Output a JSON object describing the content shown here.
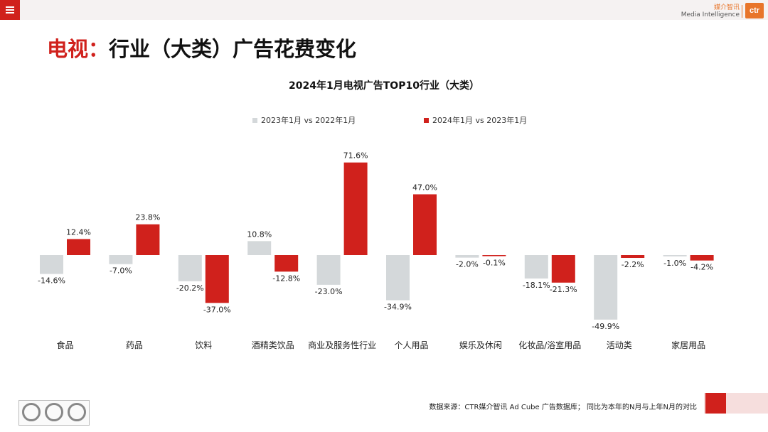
{
  "header": {
    "brand_cn": "媒介智讯",
    "brand_en": "Media Intelligence",
    "logo_text": "ctr",
    "menu_icon": "hamburger-icon"
  },
  "page": {
    "title_lead": "电视：",
    "title_rest": "行业（大类）广告花费变化"
  },
  "footer": {
    "source": "数据来源：CTR媒介智讯 Ad Cube 广告数据库； 同比为本年的N月与上年N月的对比",
    "cert_icons": [
      "sgs-cert-icon",
      "sgs-cert-icon",
      "sgs-cert-icon"
    ]
  },
  "colors": {
    "accent": "#d0211c",
    "series_2023": "#d4d8da",
    "series_2024": "#d0211c"
  },
  "chart_data": {
    "type": "bar",
    "title": "2024年1月电视广告TOP10行业（大类）",
    "categories": [
      "食品",
      "药品",
      "饮料",
      "酒精类饮品",
      "商业及服务性行业",
      "个人用品",
      "娱乐及休闲",
      "化妆品/浴室用品",
      "活动类",
      "家居用品"
    ],
    "series": [
      {
        "name": "2023年1月  vs  2022年1月",
        "values": [
          -14.6,
          -7.0,
          -20.2,
          10.8,
          -23.0,
          -34.9,
          -2.0,
          -18.1,
          -49.9,
          -1.0
        ],
        "labels": [
          "-14.6%",
          "-7.0%",
          "-20.2%",
          "10.8%",
          "-23.0%",
          "-34.9%",
          "-2.0%",
          "-18.1%",
          "-49.9%",
          "-1.0%"
        ]
      },
      {
        "name": "2024年1月  vs  2023年1月",
        "values": [
          12.4,
          23.8,
          -37.0,
          -12.8,
          71.6,
          47.0,
          -0.1,
          -21.3,
          -2.2,
          -4.2
        ],
        "labels": [
          "12.4%",
          "23.8%",
          "-37.0%",
          "-12.8%",
          "71.6%",
          "47.0%",
          "-0.1%",
          "-21.3%",
          "-2.2%",
          "-4.2%"
        ]
      }
    ],
    "unit": "%",
    "legend_position": "top",
    "grid": false
  }
}
